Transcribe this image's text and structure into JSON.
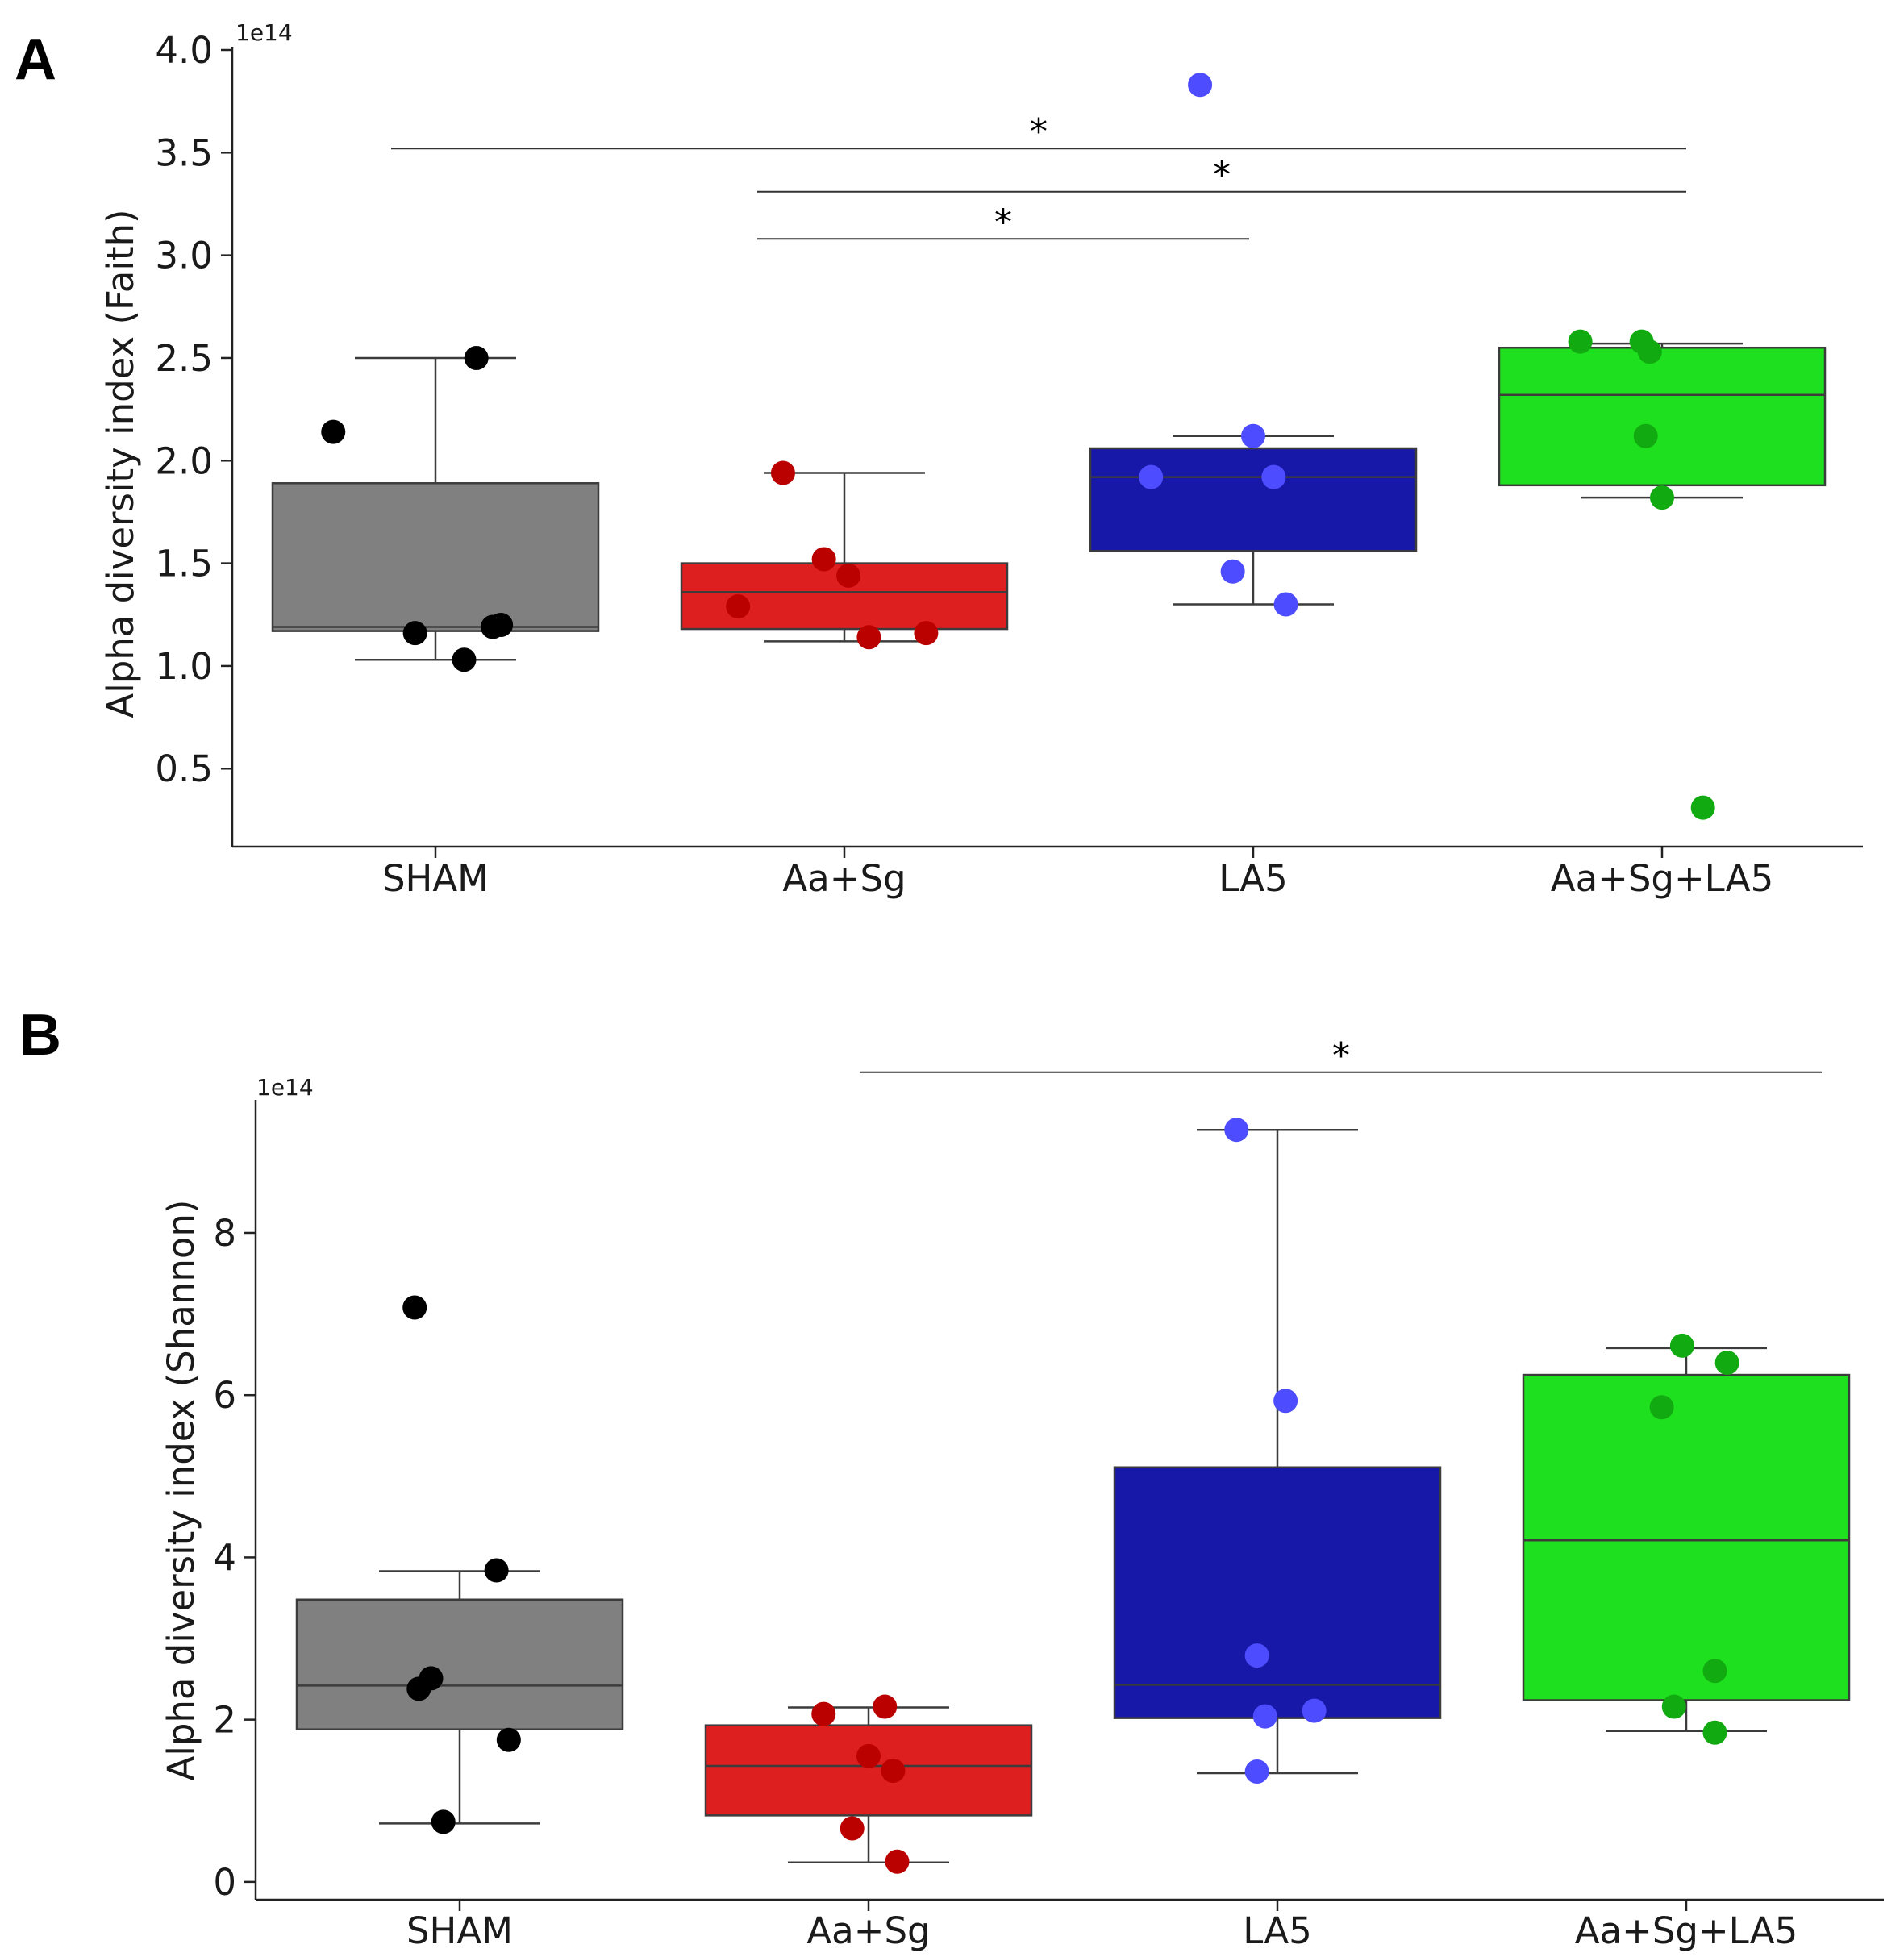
{
  "chart_data": [
    {
      "panel": "A",
      "type": "box",
      "ylabel": "Alpha diversity index (Faith)",
      "y_exponent_label": "1e14",
      "ylim": [
        0.12,
        4.0
      ],
      "yticks": [
        0.5,
        1.0,
        1.5,
        2.0,
        2.5,
        3.0,
        3.5,
        4.0
      ],
      "ytick_labels": [
        "0.5",
        "1.0",
        "1.5",
        "2.0",
        "2.5",
        "3.0",
        "3.5",
        "4.0"
      ],
      "categories": [
        "SHAM",
        "Aa+Sg",
        "LA5",
        "Aa+Sg+LA5"
      ],
      "groups": [
        {
          "name": "SHAM",
          "box_color": "#808080",
          "point_color": "#000000",
          "whisker_low": 1.03,
          "q1": 1.17,
          "median": 1.19,
          "q3": 1.89,
          "whisker_high": 2.5,
          "points": [
            {
              "y": 2.5,
              "j": 0.1
            },
            {
              "y": 2.14,
              "j": -0.25
            },
            {
              "y": 1.2,
              "j": 0.16
            },
            {
              "y": 1.19,
              "j": 0.14
            },
            {
              "y": 1.16,
              "j": -0.05
            },
            {
              "y": 1.03,
              "j": 0.07
            }
          ]
        },
        {
          "name": "Aa+Sg",
          "box_color": "#dd1f1f",
          "point_color": "#bb0000",
          "whisker_low": 1.12,
          "q1": 1.18,
          "median": 1.36,
          "q3": 1.5,
          "whisker_high": 1.94,
          "points": [
            {
              "y": 1.94,
              "j": -0.15
            },
            {
              "y": 1.52,
              "j": -0.05
            },
            {
              "y": 1.44,
              "j": 0.01
            },
            {
              "y": 1.29,
              "j": -0.26
            },
            {
              "y": 1.16,
              "j": 0.2
            },
            {
              "y": 1.14,
              "j": 0.06
            }
          ]
        },
        {
          "name": "LA5",
          "box_color": "#1818a8",
          "point_color": "#4d4dff",
          "whisker_low": 1.3,
          "q1": 1.56,
          "median": 1.92,
          "q3": 2.06,
          "whisker_high": 2.12,
          "points": [
            {
              "y": 3.83,
              "j": -0.13
            },
            {
              "y": 2.12,
              "j": 0.0
            },
            {
              "y": 1.92,
              "j": -0.25
            },
            {
              "y": 1.92,
              "j": 0.05
            },
            {
              "y": 1.46,
              "j": -0.05
            },
            {
              "y": 1.3,
              "j": 0.08
            }
          ]
        },
        {
          "name": "Aa+Sg+LA5",
          "box_color": "#1fe01f",
          "point_color": "#11aa11",
          "whisker_low": 1.82,
          "q1": 1.88,
          "median": 2.32,
          "q3": 2.55,
          "whisker_high": 2.57,
          "points": [
            {
              "y": 2.58,
              "j": -0.2
            },
            {
              "y": 2.58,
              "j": -0.05
            },
            {
              "y": 2.53,
              "j": -0.03
            },
            {
              "y": 2.12,
              "j": -0.04
            },
            {
              "y": 1.82,
              "j": 0.0
            },
            {
              "y": 0.31,
              "j": 0.1
            }
          ]
        }
      ],
      "significance": [
        {
          "from": 0,
          "to": 3,
          "y": 3.52,
          "label": "*"
        },
        {
          "from": 1,
          "to": 3,
          "y": 3.31,
          "label": "*"
        },
        {
          "from": 1,
          "to": 2,
          "y": 3.08,
          "label": "*"
        }
      ]
    },
    {
      "panel": "B",
      "type": "box",
      "ylabel": "Alpha diversity index (Shannon)",
      "y_exponent_label": "1e14",
      "ylim": [
        -0.22,
        9.6
      ],
      "yticks": [
        0,
        2,
        4,
        6,
        8
      ],
      "ytick_labels": [
        "0",
        "2",
        "4",
        "6",
        "8"
      ],
      "categories": [
        "SHAM",
        "Aa+Sg",
        "LA5",
        "Aa+Sg+LA5"
      ],
      "groups": [
        {
          "name": "SHAM",
          "box_color": "#808080",
          "point_color": "#000000",
          "whisker_low": 0.72,
          "q1": 1.88,
          "median": 2.42,
          "q3": 3.48,
          "whisker_high": 3.83,
          "points": [
            {
              "y": 7.08,
              "j": -0.11
            },
            {
              "y": 3.84,
              "j": 0.09
            },
            {
              "y": 2.51,
              "j": -0.07
            },
            {
              "y": 2.38,
              "j": -0.1
            },
            {
              "y": 1.75,
              "j": 0.12
            },
            {
              "y": 0.74,
              "j": -0.04
            }
          ]
        },
        {
          "name": "Aa+Sg",
          "box_color": "#dd1f1f",
          "point_color": "#bb0000",
          "whisker_low": 0.24,
          "q1": 0.82,
          "median": 1.43,
          "q3": 1.93,
          "whisker_high": 2.15,
          "points": [
            {
              "y": 2.16,
              "j": 0.04
            },
            {
              "y": 2.07,
              "j": -0.11
            },
            {
              "y": 1.55,
              "j": 0.0
            },
            {
              "y": 1.37,
              "j": 0.06
            },
            {
              "y": 0.66,
              "j": -0.04
            },
            {
              "y": 0.25,
              "j": 0.07
            }
          ]
        },
        {
          "name": "LA5",
          "box_color": "#1818a8",
          "point_color": "#4d4dff",
          "whisker_low": 1.34,
          "q1": 2.02,
          "median": 2.43,
          "q3": 5.11,
          "whisker_high": 9.27,
          "points": [
            {
              "y": 9.27,
              "j": -0.1
            },
            {
              "y": 5.93,
              "j": 0.02
            },
            {
              "y": 2.79,
              "j": -0.05
            },
            {
              "y": 2.11,
              "j": 0.09
            },
            {
              "y": 2.04,
              "j": -0.03
            },
            {
              "y": 1.36,
              "j": -0.05
            }
          ]
        },
        {
          "name": "Aa+Sg+LA5",
          "box_color": "#1fe01f",
          "point_color": "#11aa11",
          "whisker_low": 1.86,
          "q1": 2.24,
          "median": 4.21,
          "q3": 6.25,
          "whisker_high": 6.58,
          "points": [
            {
              "y": 6.61,
              "j": -0.01
            },
            {
              "y": 6.4,
              "j": 0.1
            },
            {
              "y": 5.85,
              "j": -0.06
            },
            {
              "y": 2.6,
              "j": 0.07
            },
            {
              "y": 2.16,
              "j": -0.03
            },
            {
              "y": 1.84,
              "j": 0.07
            }
          ]
        }
      ],
      "significance": [
        {
          "from": 1,
          "to": 3,
          "y": 9.98,
          "label": "*"
        }
      ]
    }
  ]
}
